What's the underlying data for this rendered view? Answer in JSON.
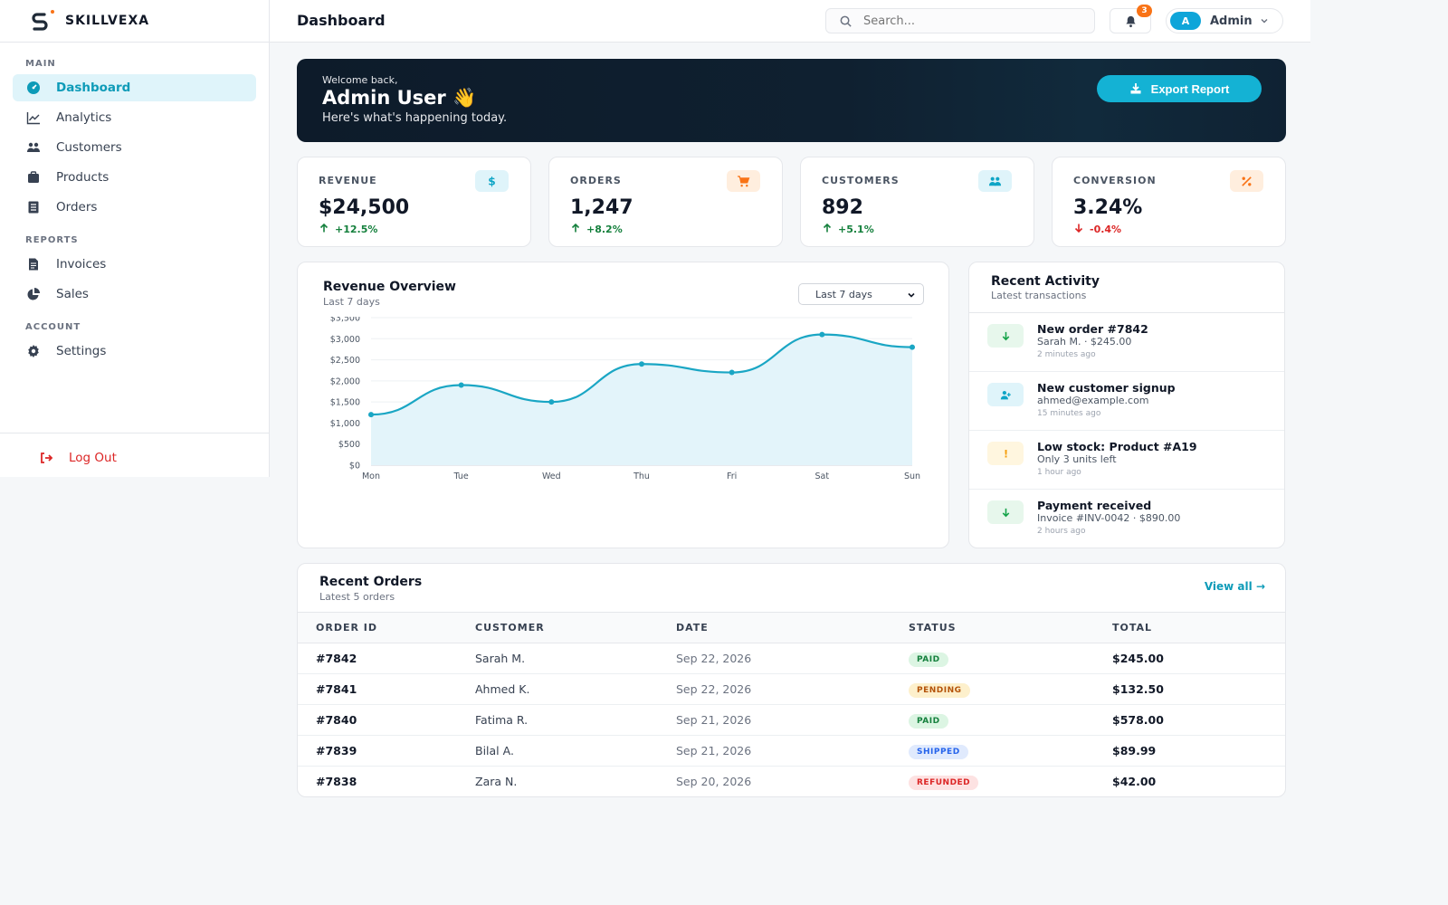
{
  "brand": {
    "name": "SKILLVEXA"
  },
  "header": {
    "title": "Dashboard",
    "search_placeholder": "Search...",
    "notifications": "3",
    "user_initial": "A",
    "user_name": "Admin"
  },
  "sidebar": {
    "sections": [
      {
        "label": "MAIN",
        "items": [
          {
            "label": "Dashboard",
            "icon": "gauge-icon",
            "active": true
          },
          {
            "label": "Analytics",
            "icon": "line-chart-icon"
          },
          {
            "label": "Customers",
            "icon": "users-icon"
          },
          {
            "label": "Products",
            "icon": "box-icon"
          },
          {
            "label": "Orders",
            "icon": "list-icon"
          }
        ]
      },
      {
        "label": "REPORTS",
        "items": [
          {
            "label": "Invoices",
            "icon": "invoice-icon"
          },
          {
            "label": "Sales",
            "icon": "pie-chart-icon"
          }
        ]
      },
      {
        "label": "ACCOUNT",
        "items": [
          {
            "label": "Settings",
            "icon": "gear-icon"
          }
        ]
      }
    ],
    "logout": "Log Out"
  },
  "banner": {
    "greeting": "Welcome back,",
    "name": "Admin User",
    "emoji": "👋",
    "subtitle": "Here's what's happening today.",
    "button": "Export Report"
  },
  "stats": [
    {
      "label": "REVENUE",
      "value": "$24,500",
      "delta": "+12.5%",
      "trend": "up",
      "icon": "dollar-icon",
      "accent": "#0ea5c6",
      "bg": "#dff4fa"
    },
    {
      "label": "ORDERS",
      "value": "1,247",
      "delta": "+8.2%",
      "trend": "up",
      "icon": "cart-icon",
      "accent": "#f97316",
      "bg": "#ffeede"
    },
    {
      "label": "CUSTOMERS",
      "value": "892",
      "delta": "+5.1%",
      "trend": "up",
      "icon": "users-icon",
      "accent": "#0ea5c6",
      "bg": "#dff4fa"
    },
    {
      "label": "CONVERSION",
      "value": "3.24%",
      "delta": "-0.4%",
      "trend": "down",
      "icon": "percent-icon",
      "accent": "#f97316",
      "bg": "#ffeede"
    }
  ],
  "chart_card": {
    "title": "Revenue Overview",
    "subtitle": "Last 7 days",
    "range": "Last 7 days"
  },
  "chart_data": {
    "type": "area",
    "categories": [
      "Mon",
      "Tue",
      "Wed",
      "Thu",
      "Fri",
      "Sat",
      "Sun"
    ],
    "values": [
      1200,
      1900,
      1500,
      2400,
      2200,
      3100,
      2800
    ],
    "yticks": [
      "$0",
      "$500",
      "$1,000",
      "$1,500",
      "$2,000",
      "$2,500",
      "$3,000",
      "$3,500"
    ],
    "ylim": [
      0,
      3500
    ],
    "grid": true,
    "color": "#1aa6c4",
    "fill": "#e3f4fa"
  },
  "activity": {
    "title": "Recent Activity",
    "subtitle": "Latest transactions",
    "items": [
      {
        "title": "New order #7842",
        "desc": "Sarah M. · $245.00",
        "time": "2 minutes ago",
        "icon": "arrow-down-icon",
        "color": "#16a34a",
        "bg": "#e7f7ec"
      },
      {
        "title": "New customer signup",
        "desc": "ahmed@example.com",
        "time": "15 minutes ago",
        "icon": "user-plus-icon",
        "color": "#0ea5c6",
        "bg": "#dff4fa"
      },
      {
        "title": "Low stock: Product #A19",
        "desc": "Only 3 units left",
        "time": "1 hour ago",
        "icon": "alert-icon",
        "color": "#f59e0b",
        "bg": "#fff6df"
      },
      {
        "title": "Payment received",
        "desc": "Invoice #INV-0042 · $890.00",
        "time": "2 hours ago",
        "icon": "arrow-down-icon",
        "color": "#16a34a",
        "bg": "#e7f7ec"
      }
    ]
  },
  "orders": {
    "title": "Recent Orders",
    "subtitle": "Latest 5 orders",
    "view_all": "View all →",
    "columns": [
      "ORDER ID",
      "CUSTOMER",
      "DATE",
      "STATUS",
      "TOTAL"
    ],
    "rows": [
      {
        "id": "#7842",
        "customer": "Sarah M.",
        "date": "Sep 22, 2026",
        "status": "PAID",
        "total": "$245.00",
        "status_color": "#15803d",
        "status_bg": "#dcf5e3"
      },
      {
        "id": "#7841",
        "customer": "Ahmed K.",
        "date": "Sep 22, 2026",
        "status": "PENDING",
        "total": "$132.50",
        "status_color": "#b45309",
        "status_bg": "#fdf0cc"
      },
      {
        "id": "#7840",
        "customer": "Fatima R.",
        "date": "Sep 21, 2026",
        "status": "PAID",
        "total": "$578.00",
        "status_color": "#15803d",
        "status_bg": "#dcf5e3"
      },
      {
        "id": "#7839",
        "customer": "Bilal A.",
        "date": "Sep 21, 2026",
        "status": "SHIPPED",
        "total": "$89.99",
        "status_color": "#2563eb",
        "status_bg": "#e0eafd"
      },
      {
        "id": "#7838",
        "customer": "Zara N.",
        "date": "Sep 20, 2026",
        "status": "REFUNDED",
        "total": "$42.00",
        "status_color": "#dc2626",
        "status_bg": "#fde2e2"
      }
    ]
  }
}
